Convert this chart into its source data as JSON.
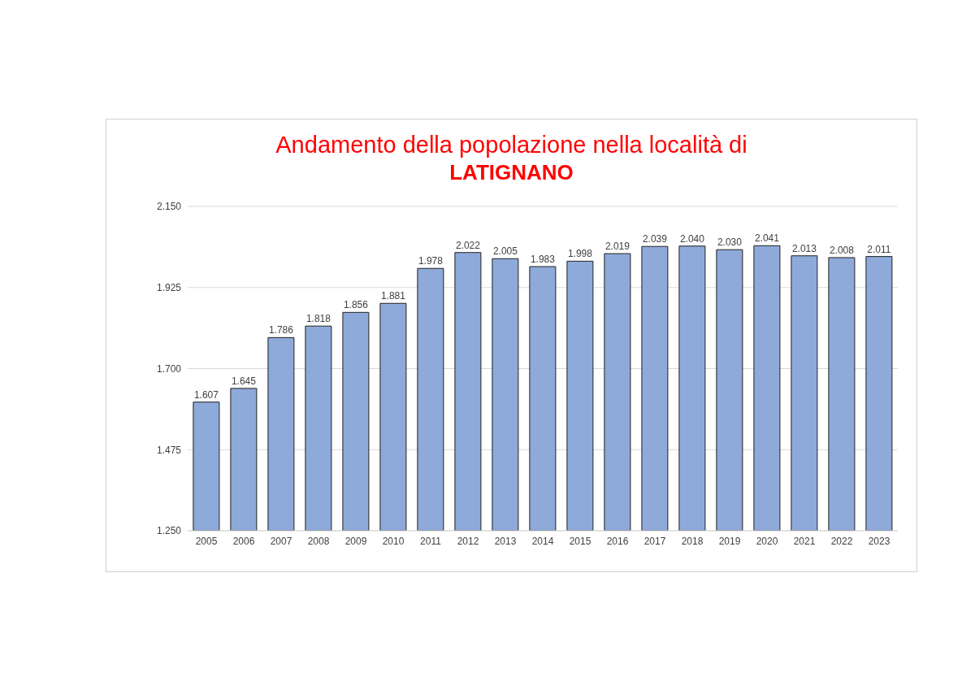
{
  "chart_data": {
    "type": "bar",
    "title": "Andamento della popolazione nella località di",
    "subtitle": "LATIGNANO",
    "categories": [
      "2005",
      "2006",
      "2007",
      "2008",
      "2009",
      "2010",
      "2011",
      "2012",
      "2013",
      "2014",
      "2015",
      "2016",
      "2017",
      "2018",
      "2019",
      "2020",
      "2021",
      "2022",
      "2023"
    ],
    "values": [
      1607,
      1645,
      1786,
      1818,
      1856,
      1881,
      1978,
      2022,
      2005,
      1983,
      1998,
      2019,
      2039,
      2040,
      2030,
      2041,
      2013,
      2008,
      2011
    ],
    "value_labels": [
      "1.607",
      "1.645",
      "1.786",
      "1.818",
      "1.856",
      "1.881",
      "1.978",
      "2.022",
      "2.005",
      "1.983",
      "1.998",
      "2.019",
      "2.039",
      "2.040",
      "2.030",
      "2.041",
      "2.013",
      "2.008",
      "2.011"
    ],
    "color": "#8eaadb",
    "ylim": [
      1250,
      2150
    ],
    "yticks": [
      {
        "value": 1250,
        "label": "1.250"
      },
      {
        "value": 1475,
        "label": "1.475"
      },
      {
        "value": 1700,
        "label": "1.700"
      },
      {
        "value": 1925,
        "label": "1.925"
      },
      {
        "value": 2150,
        "label": "2.150"
      }
    ],
    "grid": "y"
  }
}
